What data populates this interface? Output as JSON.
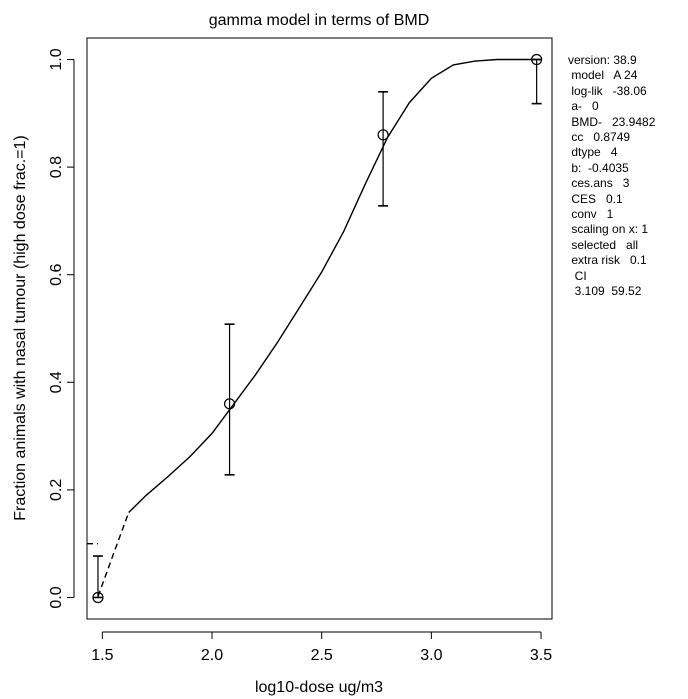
{
  "chart_data": {
    "type": "scatter",
    "title": "gamma model in terms of BMD",
    "xlabel": "log10-dose ug/m3",
    "ylabel": "Fraction animals with nasal tumour (high dose frac.=1)",
    "xlim": [
      1.43,
      3.55
    ],
    "ylim": [
      -0.04,
      1.04
    ],
    "x_ticks": [
      1.5,
      2.0,
      2.5,
      3.0,
      3.5
    ],
    "x_tick_labels": [
      "1.5",
      "2.0",
      "2.5",
      "3.0",
      "3.5"
    ],
    "y_ticks": [
      0.0,
      0.2,
      0.4,
      0.6,
      0.8,
      1.0
    ],
    "y_tick_labels": [
      "0.0",
      "0.2",
      "0.4",
      "0.6",
      "0.8",
      "1.0"
    ],
    "grid": false,
    "points": [
      {
        "x": 1.48,
        "y": 0.0,
        "ci": [
          0.0,
          0.077
        ]
      },
      {
        "x": 2.08,
        "y": 0.36,
        "ci": [
          0.228,
          0.508
        ]
      },
      {
        "x": 2.78,
        "y": 0.86,
        "ci": [
          0.728,
          0.94
        ]
      },
      {
        "x": 3.48,
        "y": 1.0,
        "ci": [
          0.918,
          1.0
        ]
      }
    ],
    "fit_curve": [
      [
        1.48,
        0.002
      ],
      [
        1.55,
        0.08
      ],
      [
        1.62,
        0.158
      ],
      [
        1.7,
        0.19
      ],
      [
        1.8,
        0.225
      ],
      [
        1.9,
        0.262
      ],
      [
        2.0,
        0.305
      ],
      [
        2.1,
        0.36
      ],
      [
        2.2,
        0.415
      ],
      [
        2.3,
        0.475
      ],
      [
        2.4,
        0.54
      ],
      [
        2.5,
        0.605
      ],
      [
        2.6,
        0.68
      ],
      [
        2.7,
        0.77
      ],
      [
        2.8,
        0.855
      ],
      [
        2.9,
        0.92
      ],
      [
        3.0,
        0.965
      ],
      [
        3.1,
        0.99
      ],
      [
        3.2,
        0.997
      ],
      [
        3.3,
        1.0
      ],
      [
        3.5,
        1.0
      ]
    ],
    "dashed_until_x": 1.62,
    "ces_level": 0.1,
    "ces_marker_x": [
      1.43,
      1.48
    ]
  },
  "sidebar": {
    "lines": [
      "version: 38.9",
      " model   A 24",
      " log-lik   -38.06",
      " a-   0",
      " BMD-   23.9482",
      " cc   0.8749",
      " dtype   4",
      " b:  -0.4035",
      " ces.ans   3",
      " CES   0.1",
      " conv   1",
      " scaling on x: 1",
      " selected   all",
      " extra risk   0.1",
      "  CI",
      "  3.109  59.52"
    ]
  }
}
